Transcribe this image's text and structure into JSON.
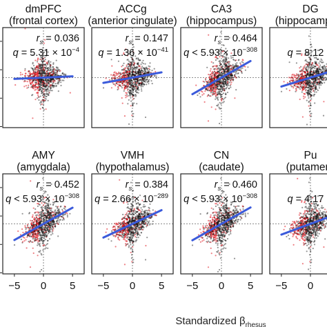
{
  "chart_data": [
    {
      "type": "scatter",
      "title": "dmPFC",
      "subtitle": "(frontal cortex)",
      "rs": "0.036",
      "q_op": "=",
      "q_mant": "5.31",
      "q_exp": "−4",
      "slope": 0.036
    },
    {
      "type": "scatter",
      "title": "ACCg",
      "subtitle": "(anterior cingulate)",
      "rs": "0.147",
      "q_op": "=",
      "q_mant": "1.36",
      "q_exp": "−41",
      "slope": 0.147
    },
    {
      "type": "scatter",
      "title": "CA3",
      "subtitle": "(hippocampus)",
      "rs": "0.464",
      "q_op": "<",
      "q_mant": "5.93",
      "q_exp": "−308",
      "slope": 0.464
    },
    {
      "type": "scatter",
      "title": "DG",
      "subtitle": "(hippocampus)",
      "rs": "",
      "q_op": "=",
      "q_mant": "8.12",
      "q_exp": "",
      "slope": 0.25
    },
    {
      "type": "scatter",
      "title": "AMY",
      "subtitle": "(amygdala)",
      "rs": "0.452",
      "q_op": "<",
      "q_mant": "5.93",
      "q_exp": "−308",
      "slope": 0.452
    },
    {
      "type": "scatter",
      "title": "VMH",
      "subtitle": "(hypothalamus)",
      "rs": "0.384",
      "q_op": "=",
      "q_mant": "2.66",
      "q_exp": "−289",
      "slope": 0.384
    },
    {
      "type": "scatter",
      "title": "CN",
      "subtitle": "(caudate)",
      "rs": "0.460",
      "q_op": "<",
      "q_mant": "5.93",
      "q_exp": "−308",
      "slope": 0.46
    },
    {
      "type": "scatter",
      "title": "Pu",
      "subtitle": "(putamen)",
      "rs": "",
      "q_op": "=",
      "q_mant": "4.17",
      "q_exp": "",
      "slope": 0.3
    }
  ],
  "shared": {
    "xlabel_main": "Standardized β",
    "xlabel_sub": "rhesus",
    "xticks": [
      "−5",
      "0",
      "5"
    ],
    "xlim": [
      -7,
      7
    ],
    "ylim": [
      -7,
      7
    ],
    "rs_label": "r",
    "rs_sub": "s",
    "q_label": "q",
    "times": "× 10",
    "colors": {
      "black_points": "#111111",
      "red_points": "#e0141e",
      "fit_line": "#3b5bdb",
      "frame": "#222222",
      "guide": "#666666"
    }
  }
}
